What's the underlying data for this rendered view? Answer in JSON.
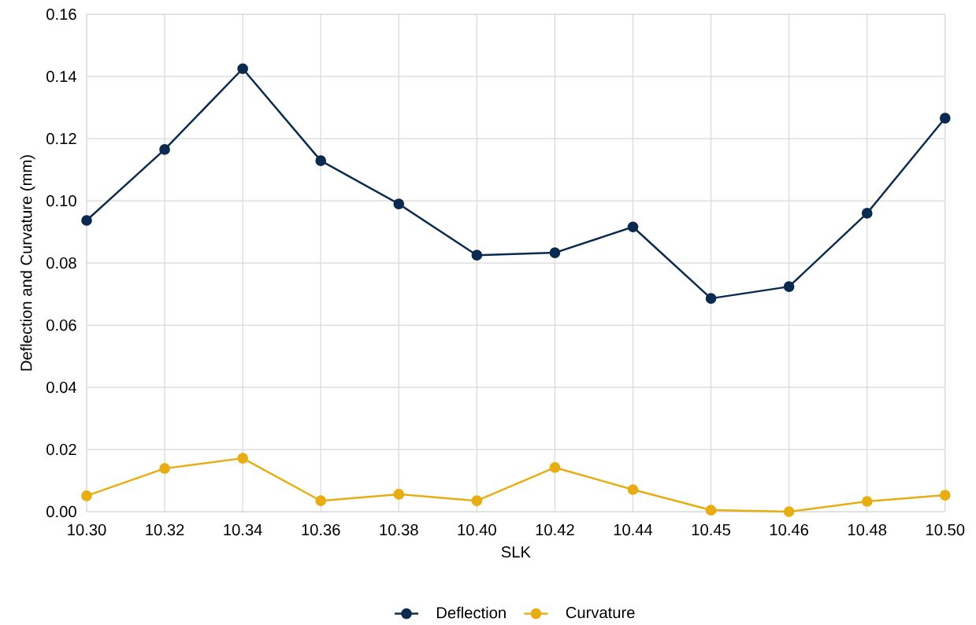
{
  "chart_data": {
    "type": "line",
    "xlabel": "SLK",
    "ylabel": "Deflection and Curvature (mm)",
    "categories": [
      "10.30",
      "10.32",
      "10.34",
      "10.36",
      "10.38",
      "10.40",
      "10.42",
      "10.44",
      "10.45",
      "10.46",
      "10.48",
      "10.50"
    ],
    "series": [
      {
        "name": "Deflection",
        "color": "#0b2a4f",
        "values": [
          0.0937,
          0.1165,
          0.1425,
          0.1129,
          0.099,
          0.0825,
          0.0833,
          0.0916,
          0.0686,
          0.0724,
          0.096,
          0.1266
        ]
      },
      {
        "name": "Curvature",
        "color": "#e8ad12",
        "values": [
          0.0051,
          0.0139,
          0.0172,
          0.0035,
          0.0056,
          0.0035,
          0.0142,
          0.0071,
          0.0005,
          0.0,
          0.0033,
          0.0053
        ]
      }
    ],
    "ylim": [
      0,
      0.16
    ],
    "yticks": [
      {
        "value": 0,
        "label": "0.00"
      },
      {
        "value": 0.02,
        "label": "0.02"
      },
      {
        "value": 0.04,
        "label": "0.04"
      },
      {
        "value": 0.06,
        "label": "0.06"
      },
      {
        "value": 0.08,
        "label": "0.08"
      },
      {
        "value": 0.1,
        "label": "0.10"
      },
      {
        "value": 0.12,
        "label": "0.12"
      },
      {
        "value": 0.14,
        "label": "0.14"
      },
      {
        "value": 0.16,
        "label": "0.16"
      }
    ],
    "grid": true,
    "legend": "bottom",
    "marker": "circle",
    "line_style": "solid"
  }
}
